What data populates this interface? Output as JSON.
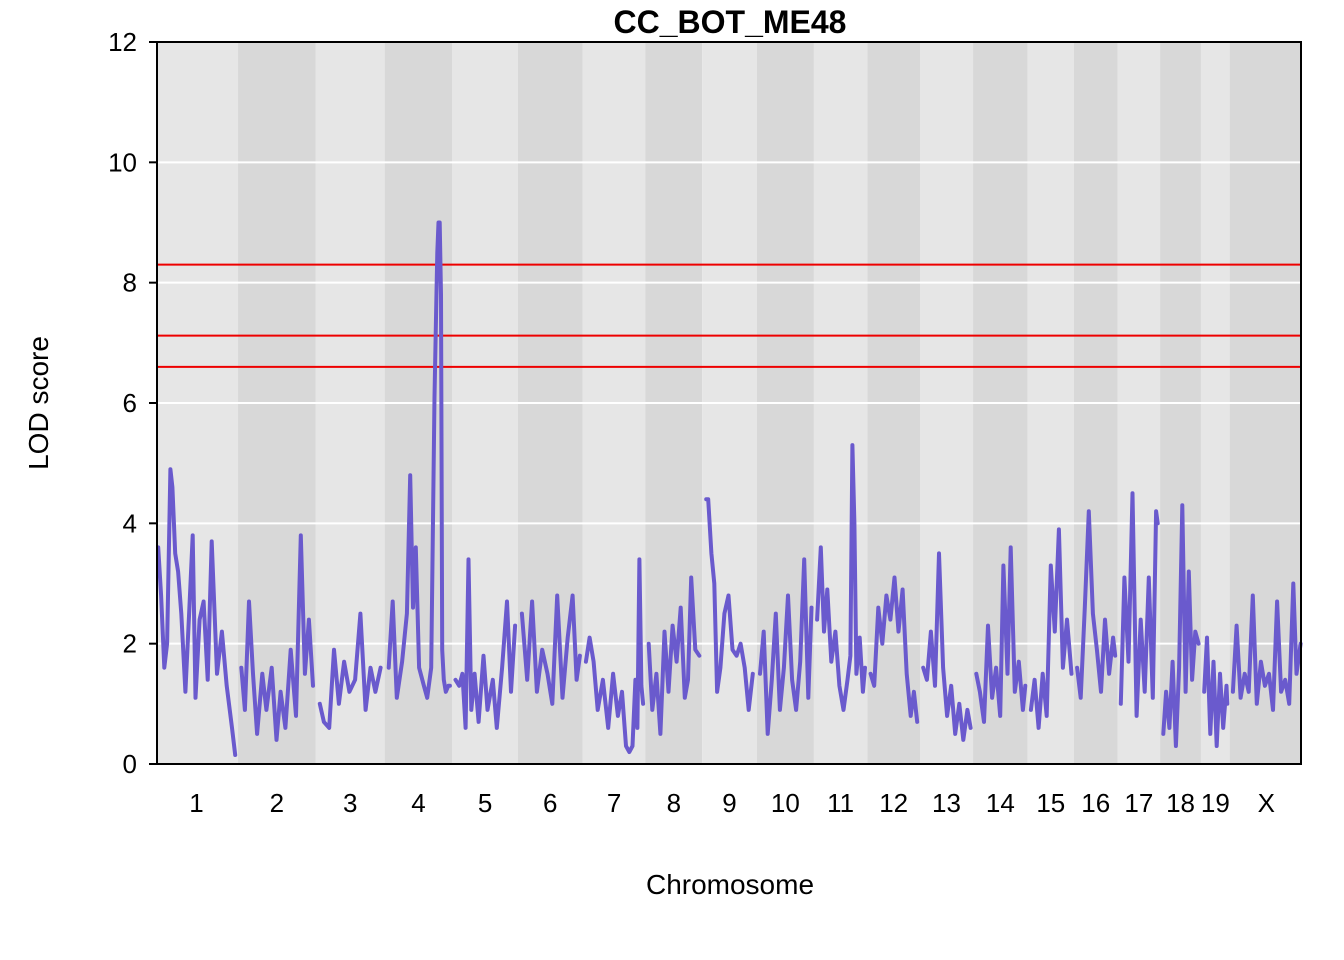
{
  "chart_data": {
    "type": "line",
    "title": "CC_BOT_ME48",
    "xlabel": "Chromosome",
    "ylabel": "LOD score",
    "ylim": [
      0,
      12
    ],
    "yticks": [
      0,
      2,
      4,
      6,
      8,
      10,
      12
    ],
    "grid": true,
    "line_color": "#6a5acd",
    "threshold_color": "#ee0000",
    "thresholds": [
      8.3,
      7.12,
      6.6
    ],
    "chromosomes": [
      {
        "label": "1",
        "length": 195
      },
      {
        "label": "2",
        "length": 182
      },
      {
        "label": "3",
        "length": 160
      },
      {
        "label": "4",
        "length": 157
      },
      {
        "label": "5",
        "length": 152
      },
      {
        "label": "6",
        "length": 150
      },
      {
        "label": "7",
        "length": 145
      },
      {
        "label": "8",
        "length": 130
      },
      {
        "label": "9",
        "length": 125
      },
      {
        "label": "10",
        "length": 131
      },
      {
        "label": "11",
        "length": 122
      },
      {
        "label": "12",
        "length": 120
      },
      {
        "label": "13",
        "length": 121
      },
      {
        "label": "14",
        "length": 125
      },
      {
        "label": "15",
        "length": 104
      },
      {
        "label": "16",
        "length": 98
      },
      {
        "label": "17",
        "length": 95
      },
      {
        "label": "18",
        "length": 91
      },
      {
        "label": "19",
        "length": 61
      },
      {
        "label": "X",
        "length": 171
      }
    ],
    "series": [
      {
        "chr": "1",
        "pos": [
          3,
          10,
          18,
          25,
          33,
          38,
          45,
          52,
          60,
          70,
          80,
          88,
          95,
          105,
          115,
          125,
          135,
          148,
          160,
          172,
          185,
          193
        ],
        "lod": [
          3.6,
          2.8,
          1.6,
          2.0,
          4.9,
          4.6,
          3.5,
          3.2,
          2.5,
          1.2,
          2.6,
          3.8,
          1.1,
          2.4,
          2.7,
          1.4,
          3.7,
          1.5,
          2.2,
          1.3,
          0.6,
          0.15
        ]
      },
      {
        "chr": "2",
        "pos": [
          3,
          12,
          22,
          32,
          42,
          55,
          65,
          78,
          90,
          100,
          112,
          125,
          138,
          150,
          160,
          170,
          180
        ],
        "lod": [
          1.6,
          0.9,
          2.7,
          1.5,
          0.5,
          1.5,
          0.9,
          1.6,
          0.4,
          1.2,
          0.6,
          1.9,
          0.8,
          3.8,
          1.5,
          2.4,
          1.3
        ]
      },
      {
        "chr": "3",
        "pos": [
          5,
          15,
          28,
          40,
          52,
          65,
          78,
          92,
          105,
          118,
          130,
          142,
          155
        ],
        "lod": [
          1.0,
          0.7,
          0.6,
          1.9,
          1.0,
          1.7,
          1.2,
          1.4,
          2.5,
          0.9,
          1.6,
          1.2,
          1.6
        ]
      },
      {
        "chr": "4",
        "pos": [
          5,
          15,
          25,
          38,
          50,
          58,
          65,
          72,
          80,
          92,
          100,
          110,
          118,
          122,
          125,
          128,
          131,
          134,
          137,
          141,
          146,
          152,
          156
        ],
        "lod": [
          1.6,
          2.7,
          1.1,
          1.7,
          2.5,
          4.8,
          2.6,
          3.6,
          1.6,
          1.3,
          1.1,
          1.6,
          6.1,
          7.5,
          8.5,
          9.0,
          9.0,
          7.8,
          1.9,
          1.4,
          1.2,
          1.3,
          1.3
        ]
      },
      {
        "chr": "5",
        "pos": [
          3,
          12,
          20,
          28,
          35,
          42,
          50,
          60,
          72,
          82,
          95,
          105,
          118,
          130,
          140,
          150
        ],
        "lod": [
          1.4,
          1.3,
          1.5,
          0.6,
          3.4,
          0.9,
          1.5,
          0.7,
          1.8,
          0.9,
          1.4,
          0.6,
          1.6,
          2.7,
          1.2,
          2.3
        ]
      },
      {
        "chr": "6",
        "pos": [
          5,
          18,
          30,
          42,
          55,
          68,
          80,
          92,
          105,
          118,
          130,
          140,
          148
        ],
        "lod": [
          2.5,
          1.4,
          2.7,
          1.2,
          1.9,
          1.5,
          1.0,
          2.8,
          1.1,
          2.1,
          2.8,
          1.4,
          1.8
        ]
      },
      {
        "chr": "7",
        "pos": [
          3,
          12,
          22,
          32,
          45,
          58,
          70,
          82,
          92,
          102,
          110,
          118,
          125,
          130,
          135,
          140,
          144
        ],
        "lod": [
          1.7,
          2.1,
          1.7,
          0.9,
          1.4,
          0.6,
          1.5,
          0.8,
          1.2,
          0.3,
          0.2,
          0.3,
          1.4,
          0.6,
          3.4,
          1.3,
          1.0
        ]
      },
      {
        "chr": "8",
        "pos": [
          3,
          12,
          22,
          32,
          42,
          52,
          62,
          72,
          82,
          92,
          100,
          108,
          118,
          128
        ],
        "lod": [
          2.0,
          0.9,
          1.5,
          0.5,
          2.2,
          1.2,
          2.3,
          1.7,
          2.6,
          1.1,
          1.4,
          3.1,
          1.9,
          1.8
        ]
      },
      {
        "chr": "9",
        "pos": [
          5,
          10,
          18,
          25,
          32,
          40,
          50,
          60,
          70,
          80,
          90,
          100,
          110,
          120
        ],
        "lod": [
          4.4,
          4.4,
          3.5,
          3.0,
          1.2,
          1.6,
          2.5,
          2.8,
          1.9,
          1.8,
          2.0,
          1.6,
          0.9,
          1.5
        ]
      },
      {
        "chr": "10",
        "pos": [
          3,
          12,
          22,
          32,
          42,
          52,
          62,
          72,
          82,
          92,
          102,
          112,
          122,
          130
        ],
        "lod": [
          1.5,
          2.2,
          0.5,
          1.4,
          2.5,
          0.9,
          1.6,
          2.8,
          1.4,
          0.9,
          1.7,
          3.4,
          1.1,
          2.6
        ]
      },
      {
        "chr": "11",
        "pos": [
          3,
          12,
          20,
          28,
          38,
          48,
          58,
          68,
          78,
          85,
          90,
          95,
          100,
          108,
          116,
          121
        ],
        "lod": [
          2.4,
          3.6,
          2.2,
          2.9,
          1.7,
          2.2,
          1.3,
          0.9,
          1.4,
          1.8,
          5.3,
          4.0,
          1.5,
          2.1,
          1.2,
          1.6
        ]
      },
      {
        "chr": "12",
        "pos": [
          3,
          12,
          22,
          32,
          42,
          52,
          62,
          72,
          82,
          92,
          102,
          110,
          118
        ],
        "lod": [
          1.5,
          1.3,
          2.6,
          2.0,
          2.8,
          2.4,
          3.1,
          2.2,
          2.9,
          1.5,
          0.8,
          1.2,
          0.7
        ]
      },
      {
        "chr": "13",
        "pos": [
          3,
          12,
          22,
          32,
          42,
          52,
          62,
          72,
          82,
          92,
          102,
          112,
          120
        ],
        "lod": [
          1.6,
          1.4,
          2.2,
          1.3,
          3.5,
          1.6,
          0.8,
          1.3,
          0.5,
          1.0,
          0.4,
          0.9,
          0.6
        ]
      },
      {
        "chr": "14",
        "pos": [
          3,
          12,
          22,
          32,
          42,
          52,
          62,
          70,
          80,
          88,
          98,
          108,
          118,
          124
        ],
        "lod": [
          1.5,
          1.2,
          0.7,
          2.3,
          1.1,
          1.6,
          0.8,
          3.3,
          1.5,
          3.6,
          1.2,
          1.7,
          0.9,
          1.3
        ]
      },
      {
        "chr": "15",
        "pos": [
          3,
          12,
          22,
          32,
          42,
          52,
          62,
          72,
          82,
          92,
          103
        ],
        "lod": [
          0.9,
          1.4,
          0.6,
          1.5,
          0.8,
          3.3,
          2.2,
          3.9,
          1.6,
          2.4,
          1.5
        ]
      },
      {
        "chr": "16",
        "pos": [
          3,
          12,
          22,
          32,
          42,
          52,
          62,
          72,
          82,
          92,
          97
        ],
        "lod": [
          1.6,
          1.1,
          2.6,
          4.2,
          2.5,
          1.9,
          1.2,
          2.4,
          1.5,
          2.1,
          1.8
        ]
      },
      {
        "chr": "17",
        "pos": [
          3,
          12,
          22,
          32,
          42,
          52,
          62,
          72,
          82,
          90,
          94
        ],
        "lod": [
          1.0,
          3.1,
          1.7,
          4.5,
          0.8,
          2.4,
          1.2,
          3.1,
          1.1,
          4.2,
          4.0
        ]
      },
      {
        "chr": "18",
        "pos": [
          3,
          10,
          18,
          26,
          34,
          42,
          50,
          58,
          66,
          74,
          82,
          90
        ],
        "lod": [
          0.5,
          1.2,
          0.6,
          1.7,
          0.3,
          1.6,
          4.3,
          1.2,
          3.2,
          1.4,
          2.2,
          2.0
        ]
      },
      {
        "chr": "19",
        "pos": [
          3,
          10,
          18,
          26,
          34,
          42,
          50,
          58,
          60
        ],
        "lod": [
          1.2,
          2.1,
          0.5,
          1.7,
          0.3,
          1.5,
          0.6,
          1.3,
          1.0
        ]
      },
      {
        "chr": "X",
        "pos": [
          3,
          12,
          22,
          32,
          42,
          52,
          62,
          72,
          82,
          92,
          102,
          112,
          122,
          132,
          142,
          152,
          160,
          168,
          170
        ],
        "lod": [
          1.2,
          2.3,
          1.1,
          1.5,
          1.2,
          2.8,
          1.0,
          1.7,
          1.3,
          1.5,
          0.9,
          2.7,
          1.2,
          1.4,
          1.0,
          3.0,
          1.5,
          1.9,
          2.0
        ]
      }
    ]
  }
}
